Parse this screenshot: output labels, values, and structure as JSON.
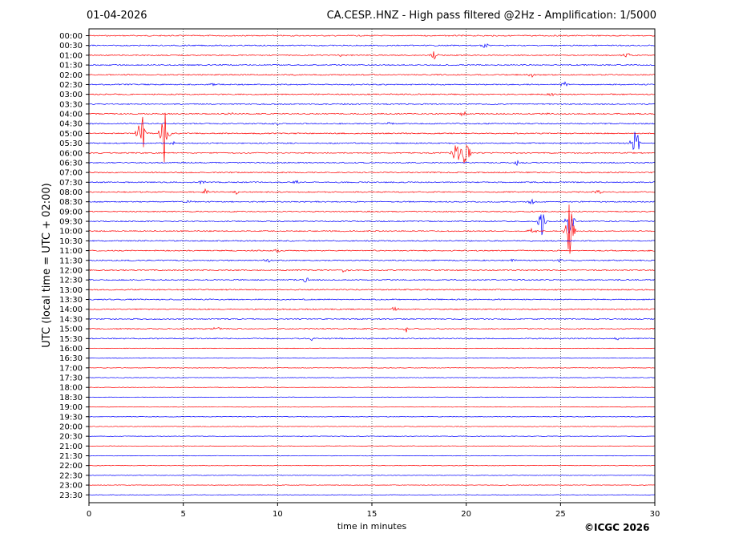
{
  "header": {
    "date": "01-04-2026",
    "title": "CA.CESP..HNZ - High pass filtered @2Hz - Amplification: 1/5000"
  },
  "footer": {
    "credit": "©ICGC 2026"
  },
  "chart_data": {
    "type": "line",
    "title": "CA.CESP..HNZ - High pass filtered @2Hz - Amplification: 1/5000",
    "xlabel": "time in minutes",
    "ylabel": "UTC (local time = UTC + 02:00)",
    "xlim": [
      0,
      30
    ],
    "xticks": [
      0,
      5,
      10,
      15,
      20,
      25,
      30
    ],
    "row_labels": [
      "00:00",
      "00:30",
      "01:00",
      "01:30",
      "02:00",
      "02:30",
      "03:00",
      "03:30",
      "04:00",
      "04:30",
      "05:00",
      "05:30",
      "06:00",
      "06:30",
      "07:00",
      "07:30",
      "08:00",
      "08:30",
      "09:00",
      "09:30",
      "10:00",
      "10:30",
      "11:00",
      "11:30",
      "12:00",
      "12:30",
      "13:00",
      "13:30",
      "14:00",
      "14:30",
      "15:00",
      "15:30",
      "16:00",
      "16:30",
      "17:00",
      "17:30",
      "18:00",
      "18:30",
      "19:00",
      "19:30",
      "20:00",
      "20:30",
      "21:00",
      "21:30",
      "22:00",
      "22:30",
      "23:00",
      "23:30"
    ],
    "trace_colors": [
      "#ff0000",
      "#0000ff"
    ],
    "grid": "vertical dotted at 5-minute ticks",
    "events": [
      {
        "row": "00:30",
        "minute": 21.0,
        "amp": 0.4
      },
      {
        "row": "01:00",
        "minute": 13.3,
        "amp": 0.3
      },
      {
        "row": "01:00",
        "minute": 18.3,
        "amp": 0.6
      },
      {
        "row": "01:00",
        "minute": 28.5,
        "amp": 0.4
      },
      {
        "row": "02:00",
        "minute": 23.5,
        "amp": 0.3
      },
      {
        "row": "02:30",
        "minute": 6.5,
        "amp": 0.2
      },
      {
        "row": "02:30",
        "minute": 25.2,
        "amp": 0.4
      },
      {
        "row": "03:00",
        "minute": 24.5,
        "amp": 0.3
      },
      {
        "row": "04:00",
        "minute": 7.5,
        "amp": 0.3
      },
      {
        "row": "04:00",
        "minute": 19.8,
        "amp": 0.4
      },
      {
        "row": "04:00",
        "minute": 24.3,
        "amp": 0.3
      },
      {
        "row": "04:30",
        "minute": 10.0,
        "amp": 0.2
      },
      {
        "row": "04:30",
        "minute": 16.0,
        "amp": 0.4
      },
      {
        "row": "05:00",
        "minute": 2.8,
        "amp": 3.2
      },
      {
        "row": "05:00",
        "minute": 4.0,
        "amp": 3.2
      },
      {
        "row": "05:30",
        "minute": 4.5,
        "amp": 0.3
      },
      {
        "row": "05:30",
        "minute": 29.0,
        "amp": 2.2
      },
      {
        "row": "06:00",
        "minute": 19.5,
        "amp": 2.0
      },
      {
        "row": "06:00",
        "minute": 20.0,
        "amp": 2.6
      },
      {
        "row": "06:30",
        "minute": 22.7,
        "amp": 0.3
      },
      {
        "row": "07:30",
        "minute": 6.0,
        "amp": 0.3
      },
      {
        "row": "07:30",
        "minute": 11.0,
        "amp": 0.3
      },
      {
        "row": "08:00",
        "minute": 6.2,
        "amp": 0.4
      },
      {
        "row": "08:00",
        "minute": 7.8,
        "amp": 0.4
      },
      {
        "row": "08:00",
        "minute": 27.0,
        "amp": 0.3
      },
      {
        "row": "08:30",
        "minute": 5.3,
        "amp": 0.3
      },
      {
        "row": "08:30",
        "minute": 23.5,
        "amp": 0.3
      },
      {
        "row": "09:30",
        "minute": 24.0,
        "amp": 1.8
      },
      {
        "row": "09:30",
        "minute": 25.5,
        "amp": 2.0
      },
      {
        "row": "10:00",
        "minute": 23.5,
        "amp": 0.4
      },
      {
        "row": "10:00",
        "minute": 25.5,
        "amp": 4.0
      },
      {
        "row": "11:00",
        "minute": 10.0,
        "amp": 0.3
      },
      {
        "row": "11:30",
        "minute": 9.5,
        "amp": 0.3
      },
      {
        "row": "11:30",
        "minute": 22.5,
        "amp": 0.2
      },
      {
        "row": "11:30",
        "minute": 25.0,
        "amp": 0.3
      },
      {
        "row": "12:00",
        "minute": 13.5,
        "amp": 0.3
      },
      {
        "row": "12:30",
        "minute": 11.5,
        "amp": 0.4
      },
      {
        "row": "14:00",
        "minute": 16.2,
        "amp": 0.3
      },
      {
        "row": "15:00",
        "minute": 6.8,
        "amp": 0.3
      },
      {
        "row": "15:00",
        "minute": 16.8,
        "amp": 0.4
      },
      {
        "row": "15:30",
        "minute": 11.8,
        "amp": 0.2
      },
      {
        "row": "15:30",
        "minute": 28.0,
        "amp": 0.2
      }
    ]
  }
}
